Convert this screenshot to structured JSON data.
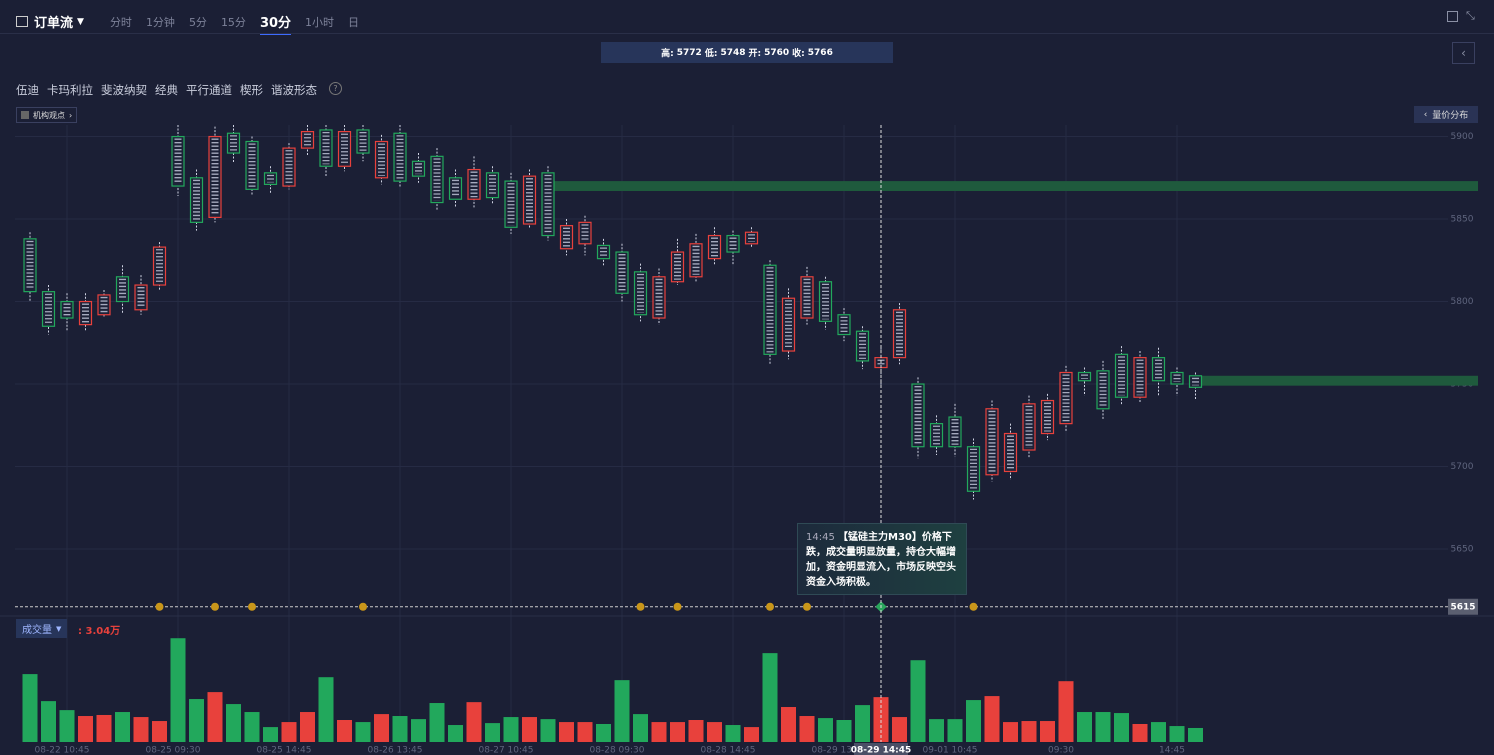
{
  "toolbar": {
    "title": "订单流",
    "intervals": [
      "分时",
      "1分钟",
      "5分",
      "15分",
      "30分",
      "1小时",
      "日"
    ],
    "selected": 4
  },
  "info_bar": {
    "labels": [
      "高:",
      "低:",
      "开:",
      "收:"
    ]
  },
  "tools": [
    "伍迪",
    "卡玛利拉",
    "斐波纳契",
    "经典",
    "平行通道",
    "楔形",
    "谐波形态"
  ],
  "help": "?",
  "tag": "机构观点",
  "side_button": "量价分布",
  "annotation": {
    "time": "14:45",
    "text": "【锰硅主力M30】价格下跌，成交量明显放量，持仓大幅增加，资金明显流入，市场反映空头资金入场积极。"
  },
  "volume_legend": {
    "name": "成交量",
    "readout": ": 3.04万"
  },
  "chart_data": [
    {
      "type": "candlestick",
      "categories": [
        null,
        null,
        "08-22 10:45",
        null,
        null,
        null,
        null,
        null,
        "08-25 09:30",
        null,
        null,
        null,
        null,
        null,
        "08-25 14:45",
        null,
        null,
        null,
        null,
        null,
        "08-26 13:45",
        null,
        null,
        null,
        null,
        null,
        "08-27 10:45",
        null,
        null,
        null,
        null,
        null,
        "08-28 09:30",
        null,
        null,
        null,
        null,
        null,
        "08-28 14:45",
        null,
        null,
        null,
        null,
        null,
        "08-29 13:45",
        null,
        "08-29 14:45",
        null,
        null,
        null,
        "09-01 10:45",
        null,
        null,
        null,
        null,
        null,
        "09:30",
        null,
        null,
        null,
        null,
        null,
        "14:45",
        null
      ],
      "open": [
        5838,
        5806,
        5800,
        5786,
        5792,
        5815,
        5795,
        5810,
        5900,
        5875,
        5851,
        5902,
        5897,
        5878,
        5870,
        5893,
        5904,
        5882,
        5904,
        5875,
        5902,
        5885,
        5888,
        5875,
        5862,
        5878,
        5873,
        5847,
        5878,
        5832,
        5835,
        5834,
        5830,
        5818,
        5790,
        5812,
        5815,
        5826,
        5840,
        5835,
        5822,
        5770,
        5790,
        5812,
        5792,
        5782,
        5760,
        5766,
        5750,
        5726,
        5730,
        5712,
        5695,
        5697,
        5710,
        5720,
        5726,
        5757,
        5758,
        5768,
        5742,
        5766,
        5757,
        5755
      ],
      "high": [
        5842,
        5810,
        5805,
        5805,
        5807,
        5822,
        5816,
        5836,
        5907,
        5880,
        5906,
        5907,
        5900,
        5882,
        5896,
        5907,
        5907,
        5907,
        5907,
        5901,
        5907,
        5890,
        5893,
        5880,
        5888,
        5882,
        5878,
        5880,
        5882,
        5850,
        5852,
        5838,
        5835,
        5823,
        5820,
        5838,
        5841,
        5845,
        5843,
        5845,
        5825,
        5808,
        5821,
        5815,
        5796,
        5785,
        5772,
        5799,
        5754,
        5731,
        5738,
        5717,
        5740,
        5726,
        5743,
        5744,
        5761,
        5760,
        5764,
        5773,
        5770,
        5772,
        5760,
        5757
      ],
      "low": [
        5800,
        5780,
        5782,
        5782,
        5790,
        5793,
        5792,
        5807,
        5864,
        5843,
        5848,
        5884,
        5864,
        5865,
        5868,
        5888,
        5876,
        5879,
        5885,
        5871,
        5869,
        5872,
        5855,
        5857,
        5857,
        5859,
        5841,
        5844,
        5837,
        5828,
        5828,
        5822,
        5800,
        5788,
        5786,
        5810,
        5812,
        5822,
        5822,
        5833,
        5762,
        5765,
        5786,
        5783,
        5776,
        5759,
        5748,
        5762,
        5705,
        5707,
        5706,
        5680,
        5691,
        5692,
        5705,
        5716,
        5721,
        5743,
        5728,
        5737,
        5739,
        5743,
        5743,
        5740
      ],
      "close": [
        5806,
        5785,
        5790,
        5800,
        5804,
        5800,
        5810,
        5833,
        5870,
        5848,
        5900,
        5890,
        5868,
        5871,
        5893,
        5903,
        5882,
        5903,
        5890,
        5897,
        5873,
        5876,
        5860,
        5862,
        5880,
        5863,
        5845,
        5876,
        5840,
        5846,
        5848,
        5826,
        5805,
        5792,
        5815,
        5830,
        5835,
        5840,
        5830,
        5842,
        5768,
        5802,
        5815,
        5788,
        5780,
        5764,
        5766,
        5795,
        5712,
        5712,
        5712,
        5685,
        5735,
        5720,
        5738,
        5740,
        5757,
        5752,
        5735,
        5742,
        5766,
        5752,
        5750,
        5748
      ],
      "up_color": "#e8413c",
      "down_color": "#22a85c",
      "ylim": [
        5610,
        5907
      ],
      "yticks": [
        5650,
        5700,
        5750,
        5800,
        5850,
        5900
      ],
      "grid": true,
      "hline": 5615,
      "crosshair": 46,
      "zones": [
        {
          "from": 28,
          "low": 5867,
          "high": 5873,
          "color": "#1f5a3d"
        },
        {
          "from": 63,
          "low": 5749,
          "high": 5755,
          "color": "#1f5a3d"
        }
      ]
    },
    {
      "type": "bar",
      "values": [
        4.6,
        2.77,
        2.16,
        1.76,
        1.83,
        2.03,
        1.69,
        1.42,
        7.03,
        2.91,
        3.38,
        2.57,
        2.03,
        1.01,
        1.35,
        2.03,
        4.39,
        1.49,
        1.35,
        1.89,
        1.76,
        1.55,
        2.64,
        1.15,
        2.7,
        1.28,
        1.69,
        1.69,
        1.55,
        1.35,
        1.35,
        1.22,
        4.19,
        1.89,
        1.35,
        1.35,
        1.49,
        1.35,
        1.15,
        1.01,
        6.02,
        2.37,
        1.76,
        1.62,
        1.49,
        2.5,
        3.04,
        1.69,
        5.54,
        1.55,
        1.55,
        2.84,
        3.11,
        1.35,
        1.42,
        1.42,
        4.12,
        2.03,
        2.03,
        1.96,
        1.22,
        1.35,
        1.08,
        0.95
      ],
      "ylim": [
        0,
        8.4
      ]
    }
  ]
}
